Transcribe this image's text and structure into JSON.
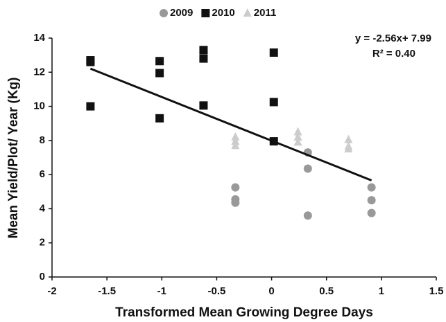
{
  "chart_data": {
    "type": "scatter",
    "x_label": "Transformed Mean Growing Degree Days",
    "y_label": "Mean Yield/Plot/ Year (Kg)",
    "xlim": [
      -2,
      1.5
    ],
    "xticks": [
      -2,
      -1.5,
      -1,
      -0.5,
      0,
      0.5,
      1,
      1.5
    ],
    "ylim": [
      0,
      14
    ],
    "yticks": [
      0,
      2,
      4,
      6,
      8,
      10,
      12,
      14
    ],
    "grid": false,
    "legend": "top",
    "series": [
      {
        "name": "2009",
        "color": "#999999",
        "marker": "circle",
        "x": [
          -0.33,
          -0.33,
          -0.33,
          0.33,
          0.33,
          0.33,
          0.91,
          0.91,
          0.91
        ],
        "values": [
          5.25,
          4.55,
          4.35,
          7.3,
          6.35,
          3.6,
          5.25,
          4.5,
          3.75
        ]
      },
      {
        "name": "2010",
        "color": "#111111",
        "marker": "square",
        "x": [
          -1.65,
          -1.65,
          -1.65,
          -1.02,
          -1.02,
          -1.02,
          -0.62,
          -0.62,
          -0.62,
          0.02,
          0.02,
          0.02
        ],
        "values": [
          12.7,
          12.6,
          10.0,
          12.65,
          11.95,
          9.3,
          13.3,
          12.8,
          10.05,
          13.15,
          10.25,
          7.95
        ]
      },
      {
        "name": "2011",
        "color": "#cccccc",
        "marker": "triangle",
        "x": [
          -0.33,
          -0.33,
          -0.33,
          0.24,
          0.24,
          0.24,
          0.7,
          0.7,
          0.7
        ],
        "values": [
          8.2,
          7.95,
          7.7,
          8.5,
          8.2,
          7.9,
          8.05,
          7.65,
          7.5
        ]
      }
    ],
    "trendline": {
      "x": [
        -1.65,
        0.91
      ],
      "values": [
        12.21,
        5.66
      ],
      "color": "#111111"
    },
    "annotations": [
      "y = -2.56x+ 7.99",
      "R² = 0.40"
    ]
  }
}
